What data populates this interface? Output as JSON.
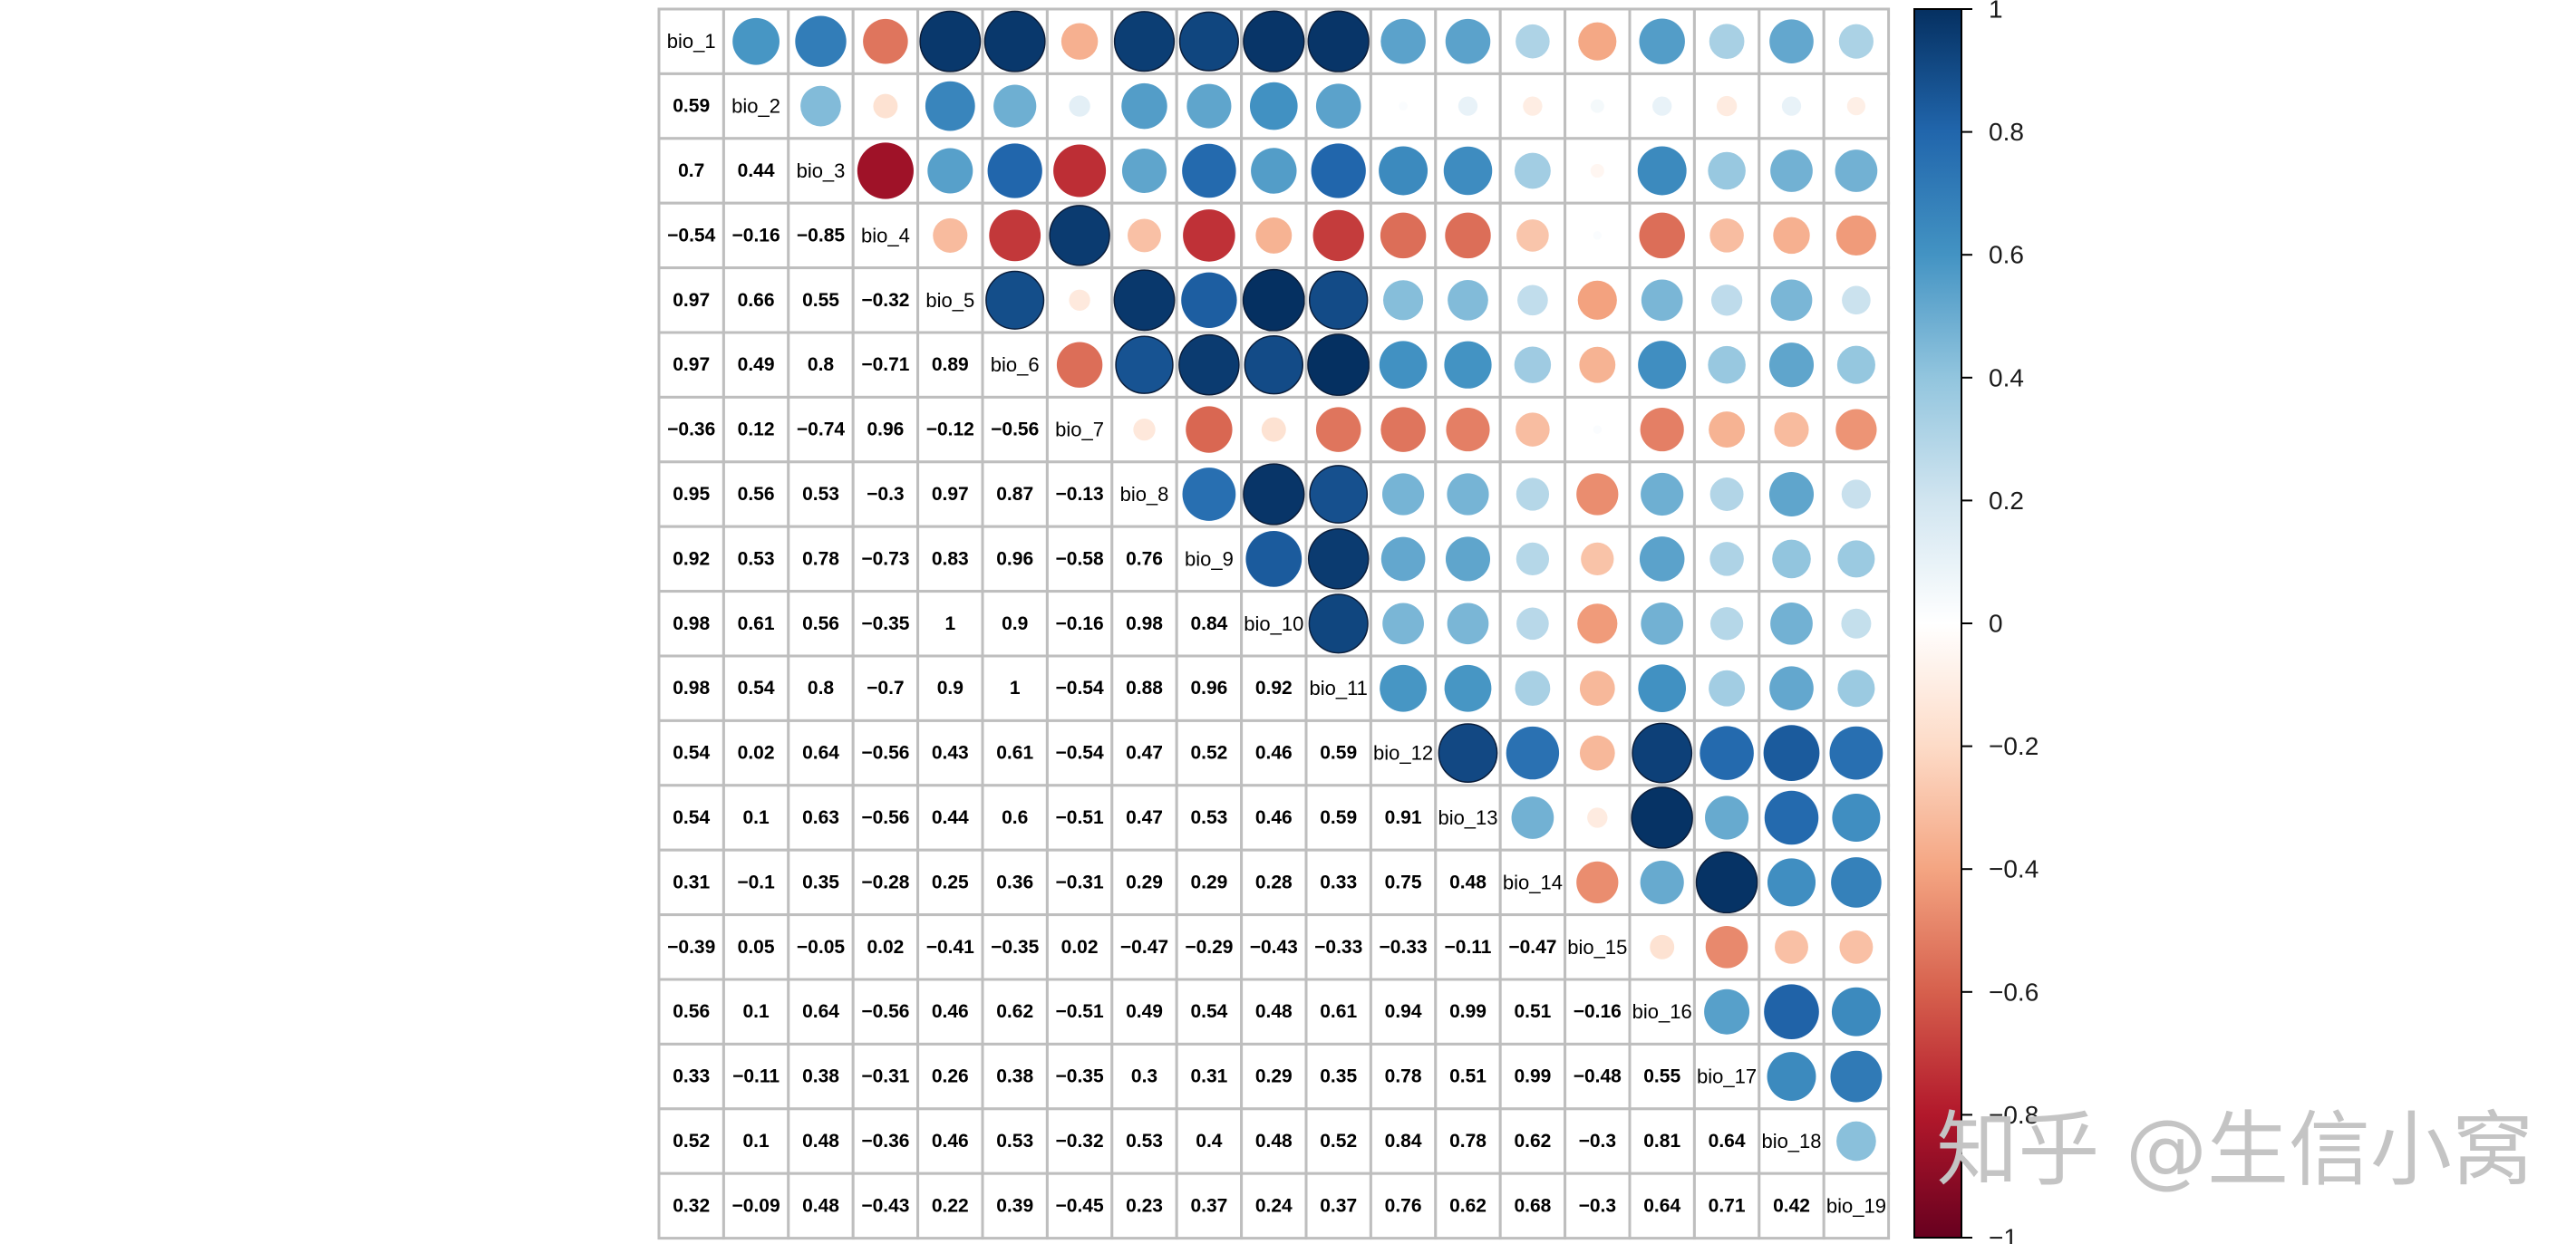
{
  "chart_data": {
    "type": "heatmap",
    "subtype": "correlation-matrix-mixed (lower: numbers, upper: circles)",
    "variables": [
      "bio_1",
      "bio_2",
      "bio_3",
      "bio_4",
      "bio_5",
      "bio_6",
      "bio_7",
      "bio_8",
      "bio_9",
      "bio_10",
      "bio_11",
      "bio_12",
      "bio_13",
      "bio_14",
      "bio_15",
      "bio_16",
      "bio_17",
      "bio_18",
      "bio_19"
    ],
    "lower_values": [
      [],
      [
        "0.59"
      ],
      [
        "0.7",
        "0.44"
      ],
      [
        "−0.54",
        "−0.16",
        "−0.85"
      ],
      [
        "0.97",
        "0.66",
        "0.55",
        "−0.32"
      ],
      [
        "0.97",
        "0.49",
        "0.8",
        "−0.71",
        "0.89"
      ],
      [
        "−0.36",
        "0.12",
        "−0.74",
        "0.96",
        "−0.12",
        "−0.56"
      ],
      [
        "0.95",
        "0.56",
        "0.53",
        "−0.3",
        "0.97",
        "0.87",
        "−0.13"
      ],
      [
        "0.92",
        "0.53",
        "0.78",
        "−0.73",
        "0.83",
        "0.96",
        "−0.58",
        "0.76"
      ],
      [
        "0.98",
        "0.61",
        "0.56",
        "−0.35",
        "1",
        "0.9",
        "−0.16",
        "0.98",
        "0.84"
      ],
      [
        "0.98",
        "0.54",
        "0.8",
        "−0.7",
        "0.9",
        "1",
        "−0.54",
        "0.88",
        "0.96",
        "0.92"
      ],
      [
        "0.54",
        "0.02",
        "0.64",
        "−0.56",
        "0.43",
        "0.61",
        "−0.54",
        "0.47",
        "0.52",
        "0.46",
        "0.59"
      ],
      [
        "0.54",
        "0.1",
        "0.63",
        "−0.56",
        "0.44",
        "0.6",
        "−0.51",
        "0.47",
        "0.53",
        "0.46",
        "0.59",
        "0.91"
      ],
      [
        "0.31",
        "−0.1",
        "0.35",
        "−0.28",
        "0.25",
        "0.36",
        "−0.31",
        "0.29",
        "0.29",
        "0.28",
        "0.33",
        "0.75",
        "0.48"
      ],
      [
        "−0.39",
        "0.05",
        "−0.05",
        "0.02",
        "−0.41",
        "−0.35",
        "0.02",
        "−0.47",
        "−0.29",
        "−0.43",
        "−0.33",
        "−0.33",
        "−0.11",
        "−0.47"
      ],
      [
        "0.56",
        "0.1",
        "0.64",
        "−0.56",
        "0.46",
        "0.62",
        "−0.51",
        "0.49",
        "0.54",
        "0.48",
        "0.61",
        "0.94",
        "0.99",
        "0.51",
        "−0.16"
      ],
      [
        "0.33",
        "−0.11",
        "0.38",
        "−0.31",
        "0.26",
        "0.38",
        "−0.35",
        "0.3",
        "0.31",
        "0.29",
        "0.35",
        "0.78",
        "0.51",
        "0.99",
        "−0.48",
        "0.55"
      ],
      [
        "0.52",
        "0.1",
        "0.48",
        "−0.36",
        "0.46",
        "0.53",
        "−0.32",
        "0.53",
        "0.4",
        "0.48",
        "0.52",
        "0.84",
        "0.78",
        "0.62",
        "−0.3",
        "0.81",
        "0.64"
      ],
      [
        "0.32",
        "−0.09",
        "0.48",
        "−0.43",
        "0.22",
        "0.39",
        "−0.45",
        "0.23",
        "0.37",
        "0.24",
        "0.37",
        "0.76",
        "0.62",
        "0.68",
        "−0.3",
        "0.64",
        "0.71",
        "0.42"
      ]
    ],
    "colorbar": {
      "range": [
        -1,
        1
      ],
      "tick_labels": [
        "1",
        "0.8",
        "0.6",
        "0.4",
        "0.2",
        "0",
        "−0.2",
        "−0.4",
        "−0.6",
        "−0.8",
        "−1"
      ],
      "colors": [
        "#053061",
        "#2166ac",
        "#4393c3",
        "#92c5de",
        "#d1e5f0",
        "#ffffff",
        "#fddbc7",
        "#f4a582",
        "#d6604d",
        "#b2182b",
        "#67001f"
      ]
    },
    "title": "",
    "xlabel": "",
    "ylabel": "",
    "grid": true
  },
  "watermark": {
    "text": "知乎 @生信小窝"
  }
}
